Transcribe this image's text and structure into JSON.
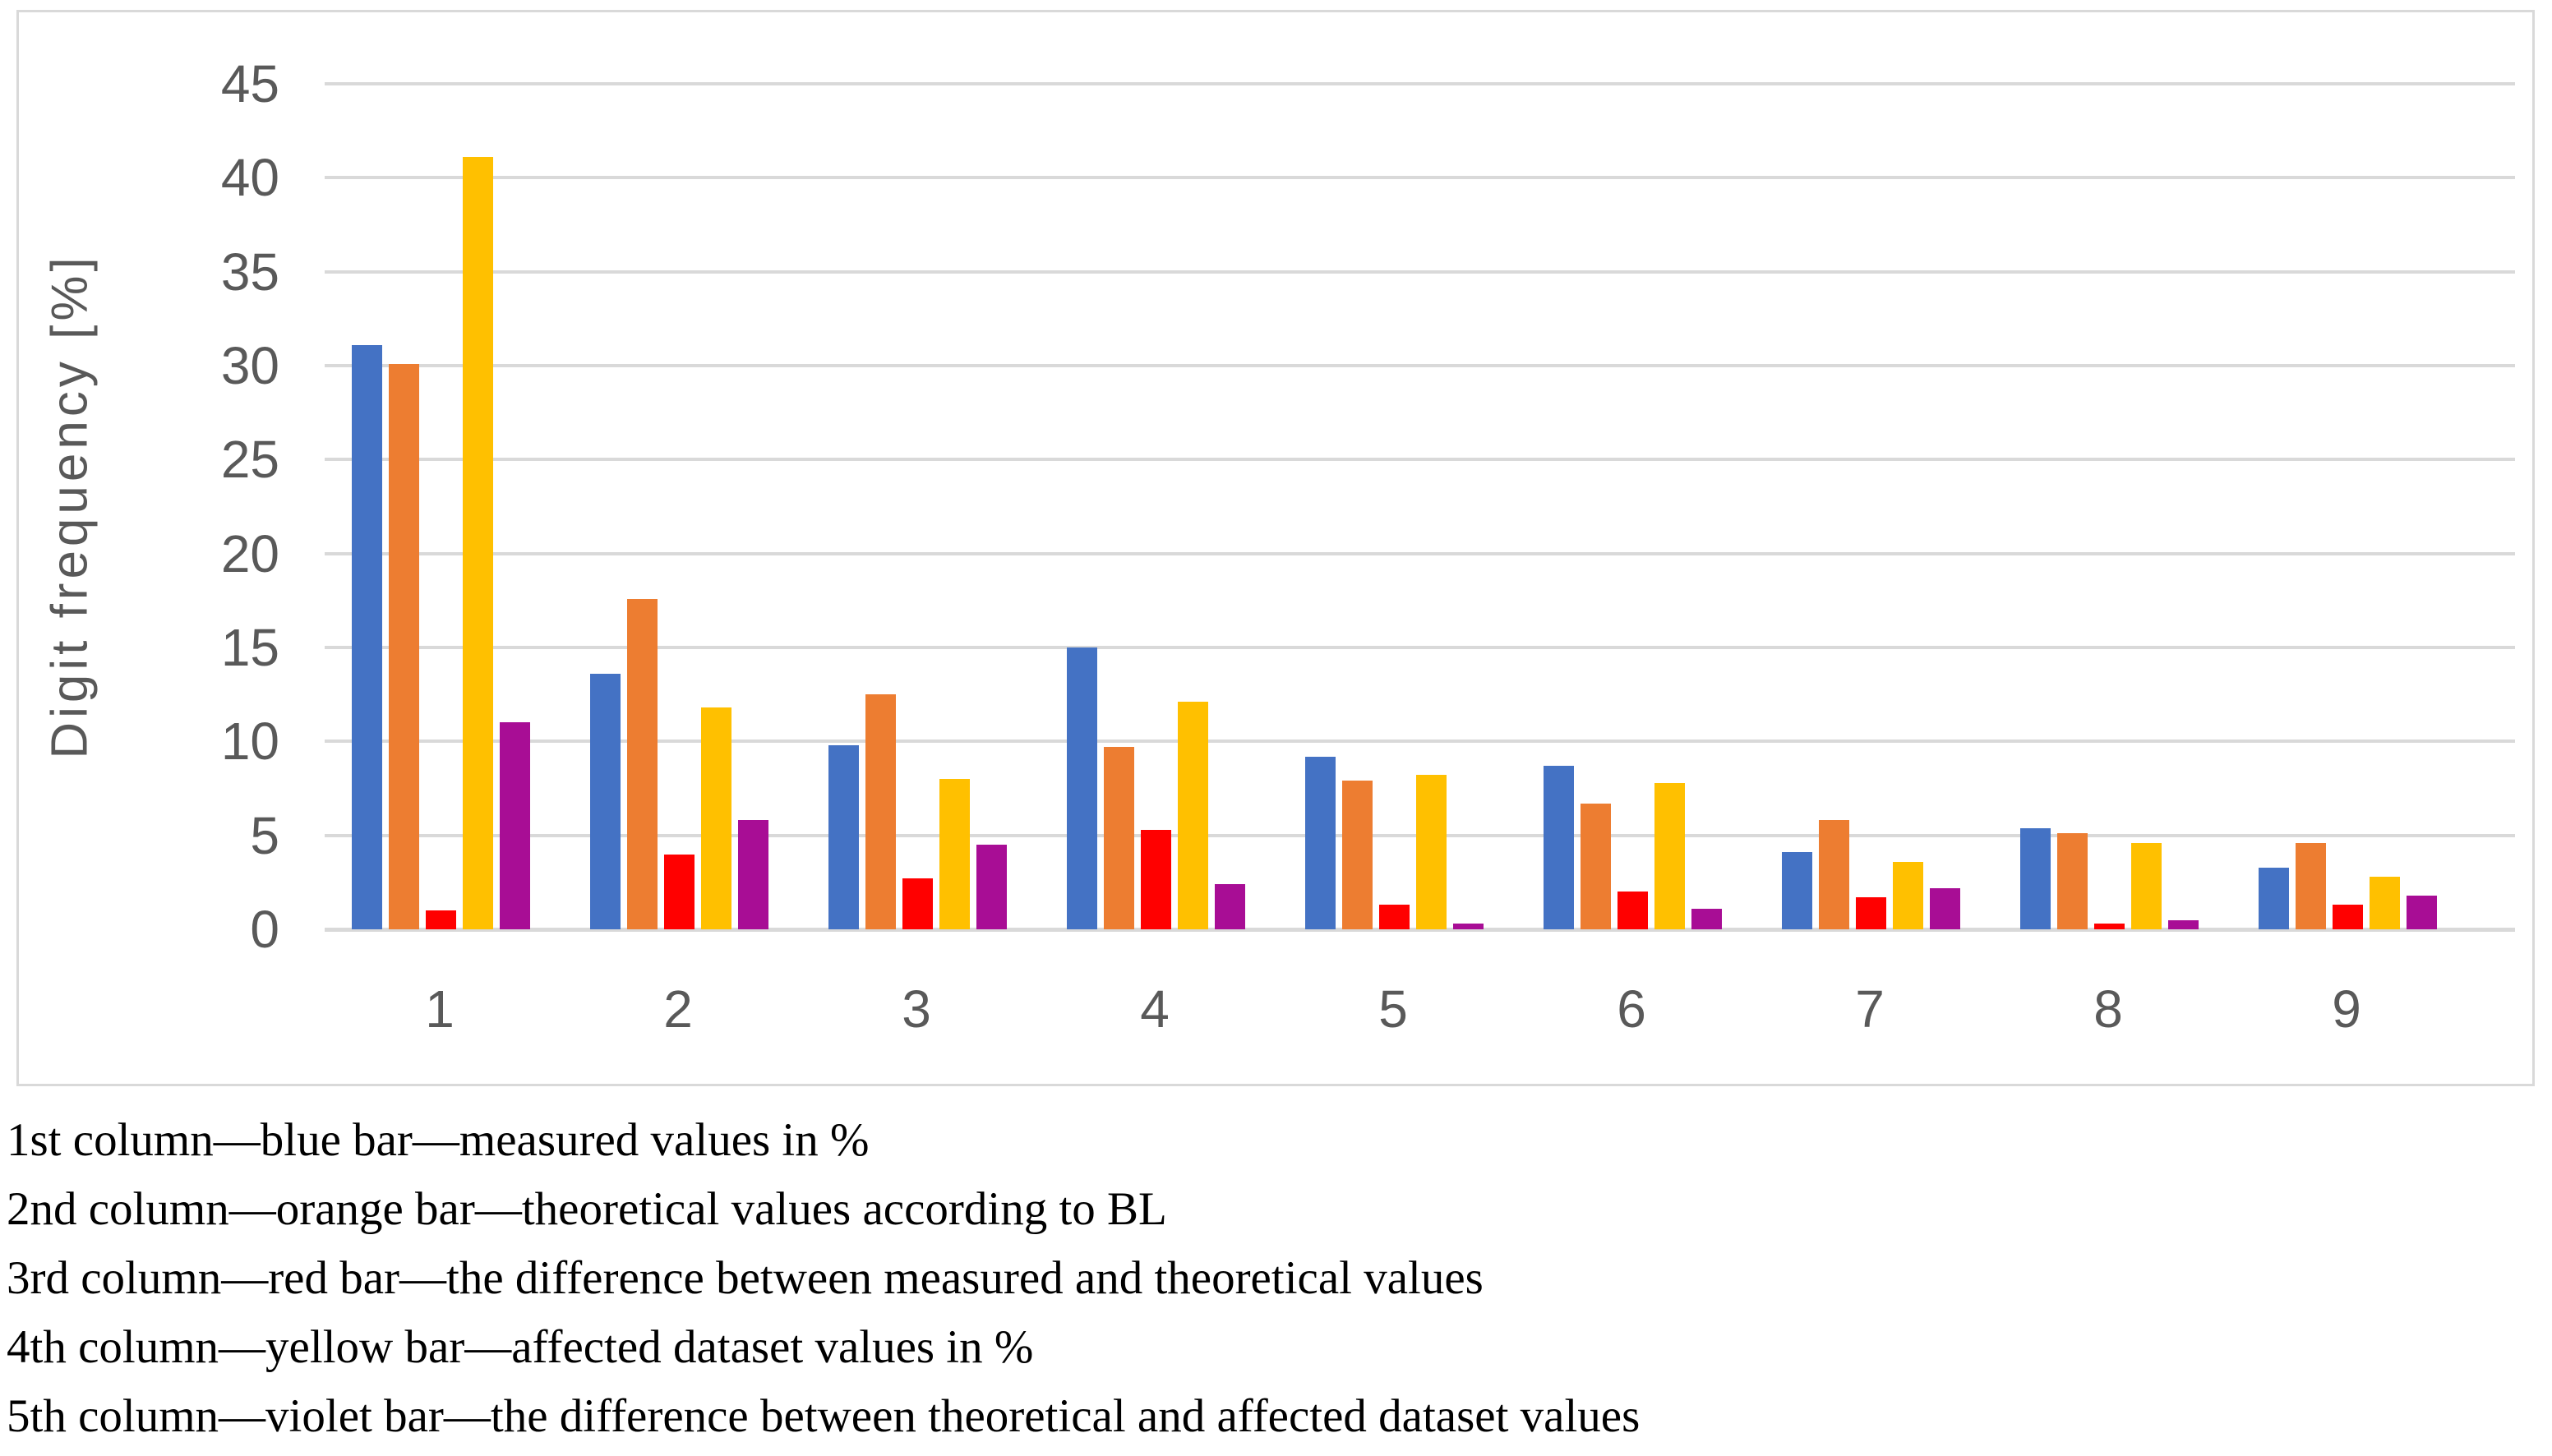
{
  "chart_data": {
    "type": "bar",
    "title": "",
    "ylabel": "Digit frequency [%]",
    "xlabel": "",
    "categories": [
      "1",
      "2",
      "3",
      "4",
      "5",
      "6",
      "7",
      "8",
      "9"
    ],
    "y_ticks": [
      0,
      5,
      10,
      15,
      20,
      25,
      30,
      35,
      40,
      45
    ],
    "ylim": [
      0,
      45
    ],
    "grid": "horizontal gridlines every 5, color #D9D9D9",
    "legend_position": "none (series described in caption text below chart)",
    "series": [
      {
        "name": "measured values in %",
        "key": "measured-blue",
        "color": "#4472C4",
        "values": [
          31.1,
          13.6,
          9.8,
          15.0,
          9.2,
          8.7,
          4.1,
          5.4,
          3.3
        ]
      },
      {
        "name": "theoretical values according to BL",
        "key": "theoretical-orange",
        "color": "#ED7D31",
        "values": [
          30.1,
          17.6,
          12.5,
          9.7,
          7.9,
          6.7,
          5.8,
          5.1,
          4.6
        ]
      },
      {
        "name": "the difference between measured and theoretical values",
        "key": "difference-red",
        "color": "#FF0000",
        "values": [
          1.0,
          4.0,
          2.7,
          5.3,
          1.3,
          2.0,
          1.7,
          0.3,
          1.3
        ]
      },
      {
        "name": "affected dataset values in %",
        "key": "affected-yellow",
        "color": "#FFC000",
        "values": [
          41.1,
          11.8,
          8.0,
          12.1,
          8.2,
          7.8,
          3.6,
          4.6,
          2.8
        ]
      },
      {
        "name": "the difference between theoretical and affected dataset values",
        "key": "difference-violet",
        "color": "#A80D95",
        "values": [
          11.0,
          5.8,
          4.5,
          2.4,
          0.3,
          1.1,
          2.2,
          0.5,
          1.8
        ]
      }
    ]
  },
  "caption": {
    "lines": [
      "1st column—blue bar—measured values in %",
      "2nd column—orange bar—theoretical values according to BL",
      "3rd column—red bar—the difference between measured and theoretical values",
      "4th column—yellow bar—affected dataset values in %",
      "5th column—violet bar—the difference between theoretical and affected dataset values"
    ]
  },
  "colors": {
    "axis_text": "#595959",
    "gridline": "#D9D9D9",
    "chart_border": "#D9D9D9",
    "background": "#FFFFFF"
  }
}
